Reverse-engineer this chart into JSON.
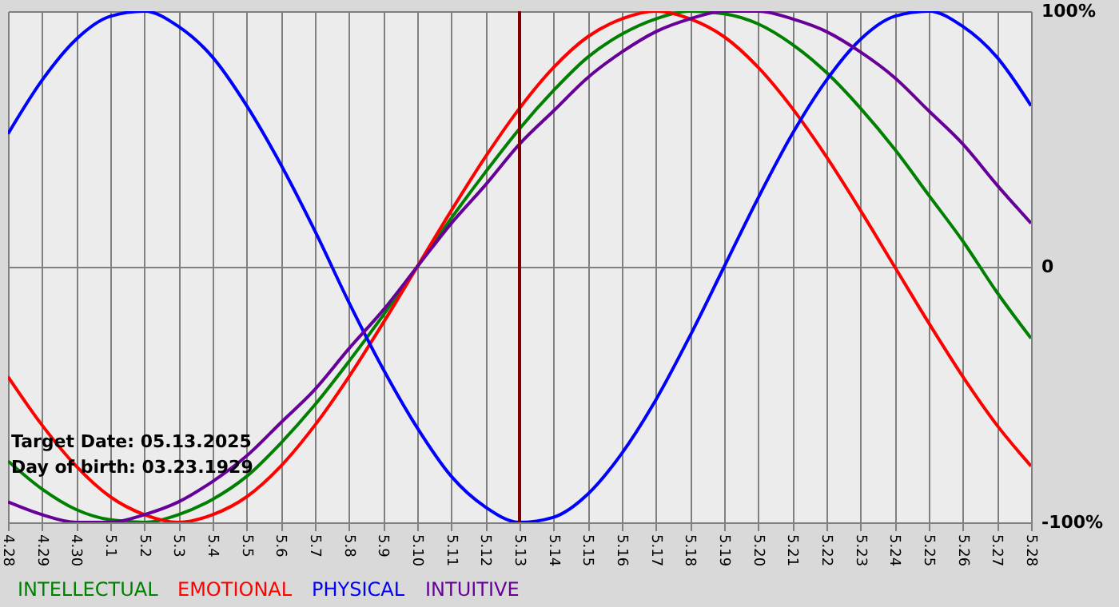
{
  "chart_data": {
    "type": "line",
    "categories": [
      "4.28",
      "4.29",
      "4.30",
      "5.1",
      "5.2",
      "5.3",
      "5.4",
      "5.5",
      "5.6",
      "5.7",
      "5.8",
      "5.9",
      "5.10",
      "5.11",
      "5.12",
      "5.13",
      "5.14",
      "5.15",
      "5.16",
      "5.17",
      "5.18",
      "5.19",
      "5.20",
      "5.21",
      "5.22",
      "5.23",
      "5.24",
      "5.25",
      "5.26",
      "5.27",
      "5.28"
    ],
    "series": [
      {
        "name": "INTELLECTUAL",
        "color": "#008000",
        "values": [
          -76,
          -87,
          -95,
          -99,
          -100,
          -97,
          -91,
          -82,
          -69,
          -54,
          -37,
          -19,
          0,
          19,
          37,
          54,
          69,
          82,
          91,
          97,
          100,
          99,
          95,
          87,
          76,
          62,
          46,
          28,
          10,
          -10,
          -28
        ]
      },
      {
        "name": "EMOTIONAL",
        "color": "#ff0000",
        "values": [
          -43,
          -62,
          -78,
          -90,
          -97,
          -100,
          -97,
          -90,
          -78,
          -62,
          -43,
          -22,
          0,
          22,
          43,
          62,
          78,
          90,
          97,
          100,
          97,
          90,
          78,
          62,
          43,
          22,
          0,
          -22,
          -43,
          -62,
          -78
        ]
      },
      {
        "name": "PHYSICAL",
        "color": "#0000ff",
        "values": [
          52,
          73,
          89,
          98,
          100,
          94,
          82,
          63,
          40,
          14,
          -14,
          -40,
          -63,
          -82,
          -94,
          -100,
          -98,
          -89,
          -73,
          -52,
          -27,
          0,
          27,
          52,
          73,
          89,
          98,
          100,
          94,
          82,
          63
        ]
      },
      {
        "name": "INTUITIVE",
        "color": "#660099",
        "values": [
          -92,
          -97,
          -100,
          -100,
          -97,
          -92,
          -84,
          -74,
          -61,
          -48,
          -32,
          -17,
          0,
          17,
          32,
          48,
          61,
          74,
          84,
          92,
          97,
          100,
          100,
          97,
          92,
          84,
          74,
          61,
          48,
          32,
          17
        ]
      }
    ],
    "ylim": [
      -100,
      100
    ],
    "yticks": [
      {
        "value": -100,
        "label": "-100%"
      },
      0,
      {
        "value": 100,
        "label": "100%"
      }
    ],
    "grid": true,
    "legend": "bottom left",
    "ref_lines": [
      {
        "axis": "x",
        "value": "5.13",
        "color": "#800000"
      }
    ],
    "annotations": [
      "Target Date: 05.13.2025",
      "Day of birth: 03.23.1929"
    ]
  }
}
